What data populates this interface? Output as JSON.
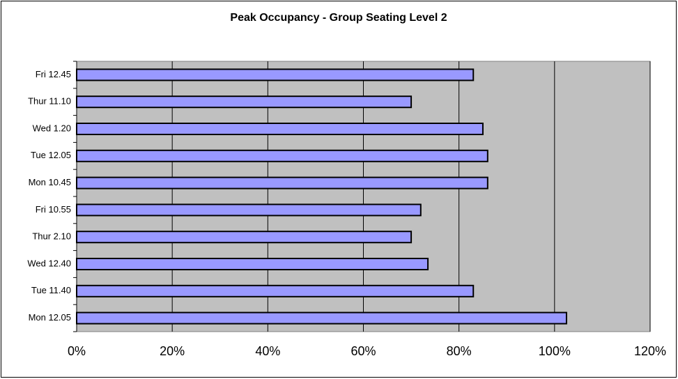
{
  "chart_data": {
    "type": "bar",
    "orientation": "horizontal",
    "title": "Peak Occupancy - Group Seating Level 2",
    "categories": [
      "Fri 12.45",
      "Thur 11.10",
      "Wed 1.20",
      "Tue 12.05",
      "Mon 10.45",
      "Fri 10.55",
      "Thur 2.10",
      "Wed 12.40",
      "Tue 11.40",
      "Mon 12.05"
    ],
    "values": [
      83,
      70,
      85,
      86,
      86,
      72,
      70,
      73.5,
      83,
      102.5
    ],
    "color": "#9999ff",
    "xlim": [
      0,
      120
    ],
    "xticks": [
      {
        "value": 0,
        "label": "0%"
      },
      {
        "value": 20,
        "label": "20%"
      },
      {
        "value": 40,
        "label": "40%"
      },
      {
        "value": 60,
        "label": "60%"
      },
      {
        "value": 80,
        "label": "80%"
      },
      {
        "value": 100,
        "label": "100%"
      },
      {
        "value": 120,
        "label": "120%"
      }
    ],
    "grid": true
  }
}
